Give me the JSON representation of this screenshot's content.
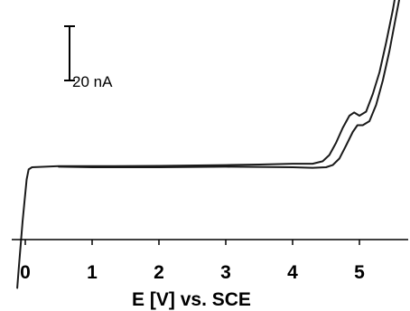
{
  "chart_data": {
    "type": "line",
    "title": "",
    "xlabel": "E [V] vs. SCE",
    "ylabel": "",
    "xlim": [
      -0.15,
      5.72
    ],
    "ylim": [
      -53,
      90
    ],
    "x_ticks": [
      0,
      1,
      2,
      3,
      4,
      5
    ],
    "x_tick_labels": [
      "0",
      "1",
      "2",
      "3",
      "4",
      "5"
    ],
    "scale_bar": {
      "label": "20 nA",
      "value": 20,
      "from": 32,
      "to": 52
    },
    "series": [
      {
        "x": [
          -0.12,
          -0.1,
          -0.07,
          -0.04,
          -0.01,
          0.02,
          0.05,
          0.1,
          0.3,
          0.5,
          1.0,
          2.0,
          3.0,
          3.5,
          4.0,
          4.3,
          4.45,
          4.55,
          4.65,
          4.75,
          4.85,
          4.92,
          5.0,
          5.1,
          5.2,
          5.3,
          5.4,
          5.5,
          5.6,
          5.7
        ],
        "y": [
          -44.5,
          -38,
          -29,
          -20,
          -12,
          -4.5,
          -0.8,
          0,
          0.2,
          0.4,
          0.4,
          0.5,
          0.8,
          1.0,
          1.3,
          1.3,
          2.2,
          4.5,
          9.0,
          14.5,
          19.0,
          20.2,
          19.0,
          20.5,
          27.0,
          35.0,
          46.0,
          58.0,
          72.0,
          86.0
        ]
      },
      {
        "x": [
          0.5,
          1.0,
          2.0,
          3.0,
          4.0,
          4.3,
          4.5,
          4.6,
          4.7,
          4.8,
          4.9,
          4.97,
          5.05,
          5.15,
          5.25,
          5.35,
          5.45,
          5.55,
          5.62
        ],
        "y": [
          0.2,
          0.0,
          0.0,
          0.2,
          0.0,
          -0.2,
          0.0,
          0.8,
          3.2,
          8.0,
          13.0,
          15.5,
          15.5,
          17.0,
          23.0,
          32.0,
          43.0,
          56.0,
          65.0
        ]
      }
    ]
  }
}
